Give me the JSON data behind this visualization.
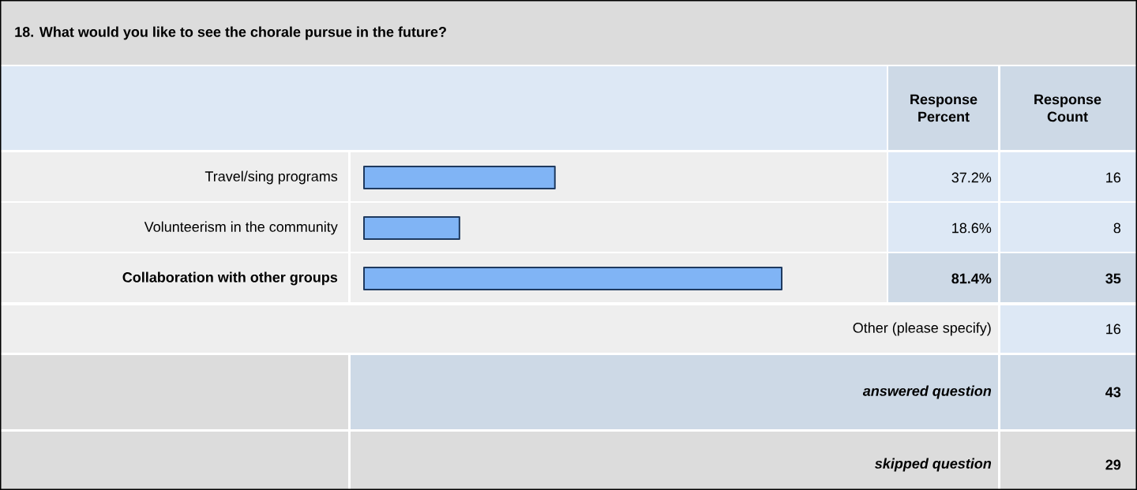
{
  "chart_data": {
    "type": "bar",
    "orientation": "horizontal",
    "title": "18. What would you like to see the chorale pursue in the future?",
    "categories": [
      "Travel/sing programs",
      "Volunteerism in the community",
      "**Collaboration with other groups**"
    ],
    "values": [
      37.2,
      18.6,
      81.4
    ],
    "value_labels": [
      "37.2%",
      "18.6%",
      "**81.4%**"
    ],
    "color": "#80b4f5",
    "annotations": [
      "Response Percent",
      "Response Count",
      "16",
      "8",
      "**35**",
      "Other (please specify)",
      "16",
      "answered question",
      "43",
      "skipped question",
      "29"
    ]
  }
}
